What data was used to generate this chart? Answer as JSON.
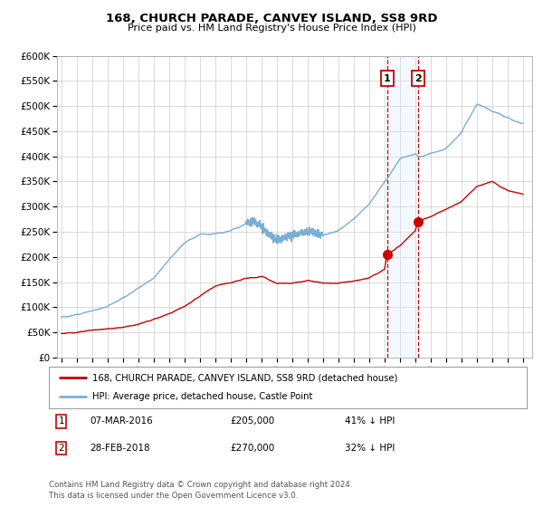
{
  "title": "168, CHURCH PARADE, CANVEY ISLAND, SS8 9RD",
  "subtitle": "Price paid vs. HM Land Registry's House Price Index (HPI)",
  "ylabel_ticks": [
    "£0",
    "£50K",
    "£100K",
    "£150K",
    "£200K",
    "£250K",
    "£300K",
    "£350K",
    "£400K",
    "£450K",
    "£500K",
    "£550K",
    "£600K"
  ],
  "ytick_vals": [
    0,
    50000,
    100000,
    150000,
    200000,
    250000,
    300000,
    350000,
    400000,
    450000,
    500000,
    550000,
    600000
  ],
  "xlim_start": 1994.7,
  "xlim_end": 2025.6,
  "ylim_min": 0,
  "ylim_max": 600000,
  "sale1_date": 2016.17,
  "sale1_price": 205000,
  "sale2_date": 2018.16,
  "sale2_price": 270000,
  "legend_line1": "168, CHURCH PARADE, CANVEY ISLAND, SS8 9RD (detached house)",
  "legend_line2": "HPI: Average price, detached house, Castle Point",
  "footnote": "Contains HM Land Registry data © Crown copyright and database right 2024.\nThis data is licensed under the Open Government Licence v3.0.",
  "hpi_color": "#7bafd4",
  "price_color": "#cc0000",
  "sale_marker_color": "#cc0000",
  "vline_color": "#cc0000",
  "shade_color": "#ddeeff",
  "background_color": "#ffffff",
  "grid_color": "#cccccc",
  "hpi_anchors": [
    [
      1995.0,
      80000
    ],
    [
      1996.0,
      85000
    ],
    [
      1997.0,
      93000
    ],
    [
      1998.0,
      102000
    ],
    [
      1999.0,
      118000
    ],
    [
      2000.0,
      138000
    ],
    [
      2001.0,
      158000
    ],
    [
      2002.0,
      195000
    ],
    [
      2003.0,
      228000
    ],
    [
      2004.0,
      245000
    ],
    [
      2005.0,
      246000
    ],
    [
      2006.0,
      252000
    ],
    [
      2007.0,
      267000
    ],
    [
      2007.5,
      272000
    ],
    [
      2008.0,
      260000
    ],
    [
      2009.0,
      232000
    ],
    [
      2010.0,
      243000
    ],
    [
      2011.0,
      250000
    ],
    [
      2012.0,
      243000
    ],
    [
      2013.0,
      252000
    ],
    [
      2014.0,
      275000
    ],
    [
      2015.0,
      305000
    ],
    [
      2016.0,
      350000
    ],
    [
      2016.2,
      357000
    ],
    [
      2017.0,
      395000
    ],
    [
      2018.0,
      405000
    ],
    [
      2018.2,
      399000
    ],
    [
      2019.0,
      405000
    ],
    [
      2020.0,
      415000
    ],
    [
      2021.0,
      448000
    ],
    [
      2022.0,
      503000
    ],
    [
      2022.5,
      498000
    ],
    [
      2023.0,
      490000
    ],
    [
      2024.0,
      477000
    ],
    [
      2024.5,
      470000
    ],
    [
      2025.0,
      463000
    ]
  ],
  "price_anchors": [
    [
      1995.0,
      47000
    ],
    [
      1996.0,
      50000
    ],
    [
      1997.0,
      54000
    ],
    [
      1998.0,
      57000
    ],
    [
      1999.0,
      60000
    ],
    [
      2000.0,
      66000
    ],
    [
      2001.0,
      76000
    ],
    [
      2002.0,
      87000
    ],
    [
      2003.0,
      102000
    ],
    [
      2004.0,
      122000
    ],
    [
      2005.0,
      142000
    ],
    [
      2006.0,
      149000
    ],
    [
      2007.0,
      157000
    ],
    [
      2008.0,
      161000
    ],
    [
      2009.0,
      147000
    ],
    [
      2010.0,
      148000
    ],
    [
      2011.0,
      153000
    ],
    [
      2012.0,
      148000
    ],
    [
      2013.0,
      148000
    ],
    [
      2014.0,
      152000
    ],
    [
      2015.0,
      158000
    ],
    [
      2016.0,
      175000
    ],
    [
      2016.17,
      205000
    ],
    [
      2017.0,
      222000
    ],
    [
      2018.0,
      252000
    ],
    [
      2018.16,
      270000
    ],
    [
      2019.0,
      280000
    ],
    [
      2020.0,
      295000
    ],
    [
      2021.0,
      310000
    ],
    [
      2022.0,
      340000
    ],
    [
      2023.0,
      350000
    ],
    [
      2024.0,
      332000
    ],
    [
      2025.0,
      325000
    ]
  ]
}
